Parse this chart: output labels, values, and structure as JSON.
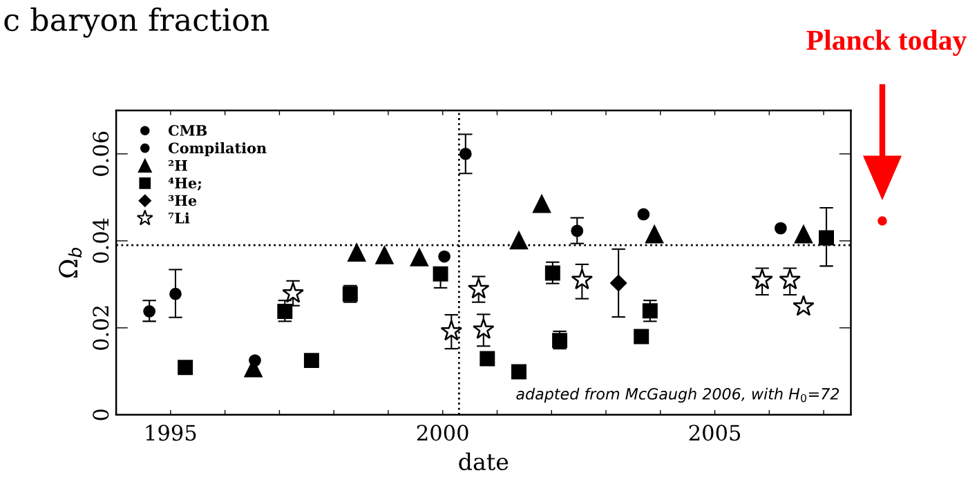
{
  "chart_data": {
    "type": "scatter",
    "title": "c baryon fraction",
    "xlabel": "date",
    "ylabel": "Ω$_{b}$",
    "xlim": [
      1994,
      2007.5
    ],
    "ylim": [
      0,
      0.07
    ],
    "xticks": [
      {
        "value": 1994,
        "label": null
      },
      1995,
      {
        "value": 1996,
        "label": null
      },
      {
        "value": 1997,
        "label": null
      },
      {
        "value": 1998,
        "label": null
      },
      {
        "value": 1999,
        "label": null
      },
      2000,
      {
        "value": 2001,
        "label": null
      },
      {
        "value": 2002,
        "label": null
      },
      {
        "value": 2003,
        "label": null
      },
      {
        "value": 2004,
        "label": null
      },
      2005,
      {
        "value": 2006,
        "label": null
      },
      {
        "value": 2007,
        "label": null
      }
    ],
    "yticks": [
      0,
      0.02,
      0.04,
      0.06
    ],
    "grid": false,
    "legend": "top left",
    "series": [
      {
        "name": "CMB",
        "color": "#000000",
        "marker": "circle",
        "x": [
          2000.42,
          2002.47,
          2003.69,
          2006.21
        ],
        "values": [
          0.06,
          0.0423,
          0.0461,
          0.0429
        ],
        "errors": [
          [
            0.0555,
            0.0645
          ],
          [
            0.0394,
            0.0453
          ],
          null,
          null
        ]
      },
      {
        "name": "Compilation",
        "color": "#000000",
        "marker": "circle",
        "x": [
          1994.61,
          1995.09,
          1996.55,
          2000.03
        ],
        "values": [
          0.0238,
          0.0278,
          0.0125,
          0.0364
        ],
        "errors": [
          [
            0.0215,
            0.0263
          ],
          [
            0.0224,
            0.0334
          ],
          null,
          null
        ]
      },
      {
        "name": "²H",
        "color": "#000000",
        "marker": "triangle",
        "x": [
          1996.52,
          1998.42,
          1998.93,
          1999.57,
          2001.4,
          2001.82,
          2003.89,
          2006.63
        ],
        "values": [
          0.0107,
          0.0373,
          0.0367,
          0.0362,
          0.0401,
          0.0485,
          0.0415,
          0.0415
        ]
      },
      {
        "name": "⁴He;",
        "color": "#000000",
        "marker": "square",
        "x": [
          1995.27,
          1997.1,
          1997.59,
          1998.3,
          1999.96,
          2000.82,
          2001.4,
          2002.02,
          2002.15,
          2003.65,
          2003.81,
          2007.05
        ],
        "values": [
          0.0109,
          0.0238,
          0.0125,
          0.0278,
          0.0324,
          0.0129,
          0.0099,
          0.0326,
          0.0171,
          0.018,
          0.0239,
          0.0407
        ],
        "errors": [
          null,
          [
            0.0215,
            0.0263
          ],
          null,
          [
            0.0259,
            0.0297
          ],
          [
            0.0292,
            0.0324
          ],
          null,
          null,
          [
            0.0302,
            0.0351
          ],
          [
            0.0152,
            0.0192
          ],
          null,
          [
            0.0215,
            0.0263
          ],
          [
            0.0342,
            0.0476
          ]
        ]
      },
      {
        "name": "³He",
        "color": "#000000",
        "marker": "diamond",
        "x": [
          2003.23
        ],
        "values": [
          0.0303
        ],
        "errors": [
          [
            0.0225,
            0.0381
          ]
        ]
      },
      {
        "name": "⁷Li",
        "color": "#000000",
        "marker": "star",
        "x": [
          1997.25,
          2000.16,
          2000.66,
          2000.75,
          2002.56,
          2005.87,
          2006.38,
          2006.63
        ],
        "values": [
          0.0279,
          0.0192,
          0.0289,
          0.0196,
          0.031,
          0.031,
          0.031,
          0.0249
        ],
        "errors": [
          [
            0.0251,
            0.0308
          ],
          [
            0.0152,
            0.023
          ],
          [
            0.0259,
            0.0318
          ],
          [
            0.0158,
            0.0231
          ],
          [
            0.0267,
            0.0346
          ],
          [
            0.0276,
            0.0337
          ],
          [
            0.0276,
            0.0337
          ],
          null
        ]
      }
    ],
    "ref_lines": [
      {
        "axis": "x",
        "value": 2000.3,
        "color": "#000000",
        "line_style": "dotted"
      },
      {
        "axis": "y",
        "value": 0.039,
        "color": "#000000",
        "line_style": "dotted"
      }
    ],
    "annotations": [
      "adapted from McGaugh 2006, with H$_{0}$=72",
      "Planck today"
    ]
  }
}
